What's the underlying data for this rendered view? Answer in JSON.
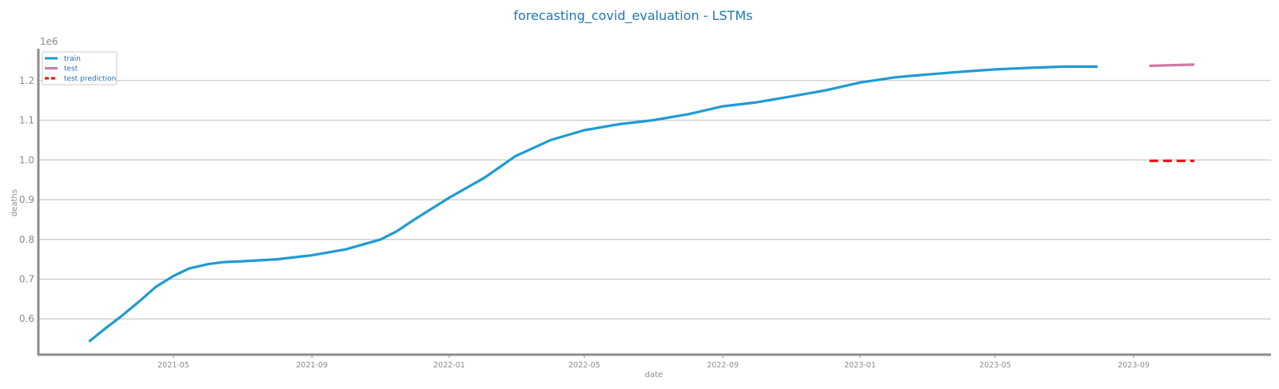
{
  "chart_data": {
    "type": "line",
    "title": "forecasting_covid_evaluation - LSTMs",
    "xlabel": "date",
    "ylabel": "deaths",
    "y_multiplier_label": "1e6",
    "xlim": [
      "2021-01-01",
      "2024-01-01"
    ],
    "ylim": [
      0.51,
      1.28
    ],
    "x_ticks": [
      "2021-05",
      "2021-09",
      "2022-01",
      "2022-05",
      "2022-09",
      "2023-01",
      "2023-05",
      "2023-09"
    ],
    "y_ticks": [
      "0.6",
      "0.7",
      "0.8",
      "0.9",
      "1.0",
      "1.1",
      "1.2"
    ],
    "grid": "horizontal",
    "legend_position": "top-left",
    "series": [
      {
        "name": "train",
        "color": "#1f9bd3",
        "style": "solid",
        "points": [
          [
            "2021-02-15",
            0.543
          ],
          [
            "2021-03-01",
            0.575
          ],
          [
            "2021-03-15",
            0.605
          ],
          [
            "2021-04-01",
            0.645
          ],
          [
            "2021-04-15",
            0.68
          ],
          [
            "2021-05-01",
            0.708
          ],
          [
            "2021-05-15",
            0.727
          ],
          [
            "2021-06-01",
            0.738
          ],
          [
            "2021-06-15",
            0.743
          ],
          [
            "2021-07-01",
            0.745
          ],
          [
            "2021-08-01",
            0.75
          ],
          [
            "2021-09-01",
            0.76
          ],
          [
            "2021-10-01",
            0.775
          ],
          [
            "2021-11-01",
            0.8
          ],
          [
            "2021-11-15",
            0.82
          ],
          [
            "2021-12-01",
            0.85
          ],
          [
            "2022-01-01",
            0.905
          ],
          [
            "2022-02-01",
            0.955
          ],
          [
            "2022-03-01",
            1.01
          ],
          [
            "2022-04-01",
            1.05
          ],
          [
            "2022-05-01",
            1.075
          ],
          [
            "2022-06-01",
            1.09
          ],
          [
            "2022-07-01",
            1.1
          ],
          [
            "2022-08-01",
            1.115
          ],
          [
            "2022-09-01",
            1.135
          ],
          [
            "2022-10-01",
            1.145
          ],
          [
            "2022-11-01",
            1.16
          ],
          [
            "2022-12-01",
            1.175
          ],
          [
            "2023-01-01",
            1.195
          ],
          [
            "2023-02-01",
            1.208
          ],
          [
            "2023-03-01",
            1.215
          ],
          [
            "2023-04-01",
            1.222
          ],
          [
            "2023-05-01",
            1.228
          ],
          [
            "2023-06-01",
            1.232
          ],
          [
            "2023-07-01",
            1.235
          ],
          [
            "2023-07-31",
            1.235
          ]
        ]
      },
      {
        "name": "test",
        "color": "#cc79a7",
        "style": "solid",
        "points": [
          [
            "2023-09-15",
            1.237
          ],
          [
            "2023-10-25",
            1.24
          ]
        ]
      },
      {
        "name": "test prediction",
        "color": "#ff0000",
        "style": "dashed",
        "points": [
          [
            "2023-09-15",
            0.998
          ],
          [
            "2023-10-25",
            0.998
          ]
        ]
      }
    ]
  }
}
